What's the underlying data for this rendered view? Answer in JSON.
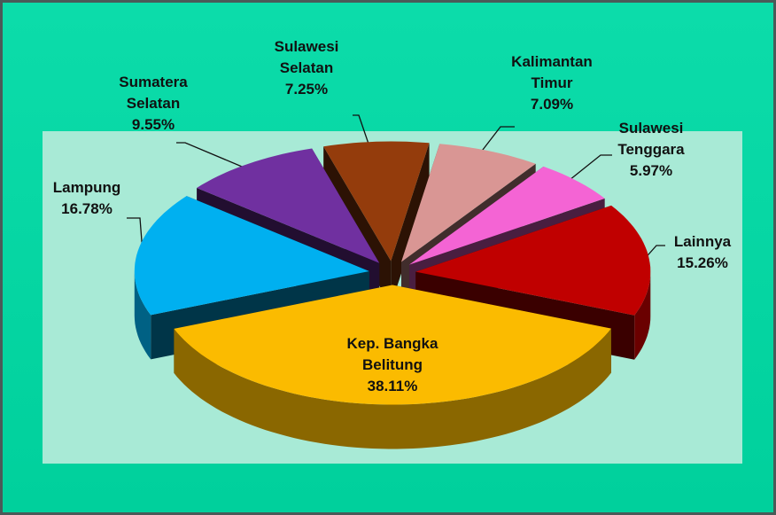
{
  "chart_data": {
    "type": "pie",
    "categories": [
      "Sulawesi Selatan",
      "Kalimantan Timur",
      "Sulawesi Tenggara",
      "Lainnya",
      "Kep. Bangka Belitung",
      "Lampung",
      "Sumatera Selatan"
    ],
    "values": [
      7.25,
      7.09,
      5.97,
      15.26,
      38.11,
      16.78,
      9.55
    ],
    "value_labels": [
      "7.25%",
      "7.09%",
      "5.97%",
      "15.26%",
      "38.11%",
      "16.78%",
      "9.55%"
    ],
    "colors": [
      "#943c0c",
      "#d99694",
      "#f464d4",
      "#c00000",
      "#fbbb00",
      "#00b0f0",
      "#7030a0"
    ]
  }
}
